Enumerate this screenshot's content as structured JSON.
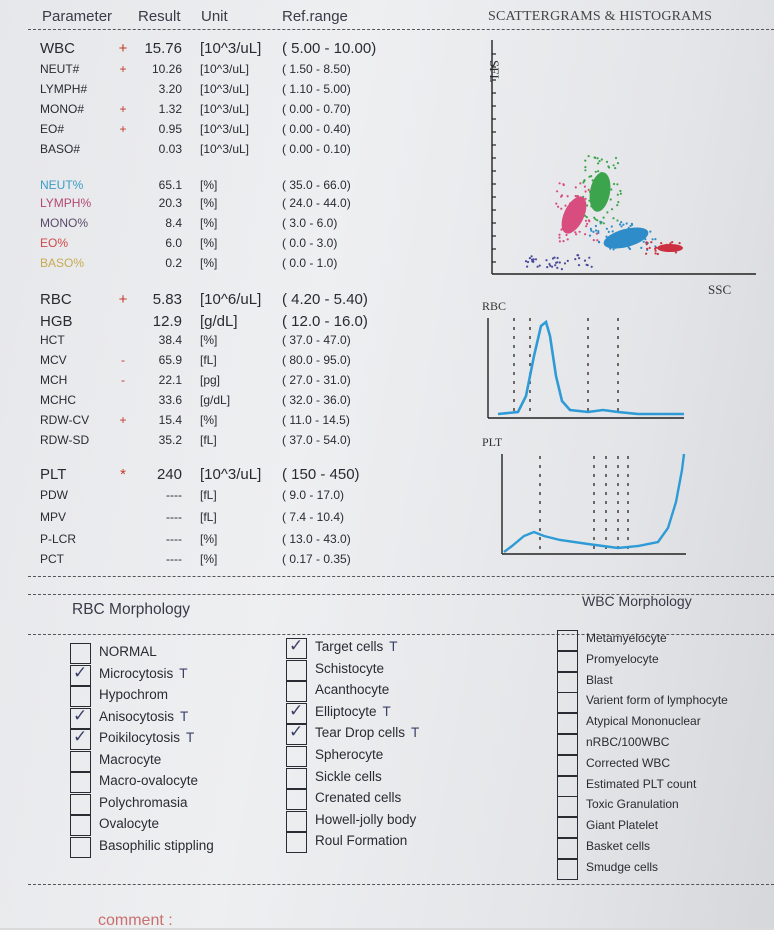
{
  "header": {
    "parameter": "Parameter",
    "result": "Result",
    "unit": "Unit",
    "ref": "Ref.range",
    "scatter_title": "SCATTERGRAMS & HISTOGRAMS"
  },
  "rows": [
    {
      "name": "WBC",
      "flag": "+",
      "result": "15.76",
      "unit": "[10^3/uL]",
      "ref": "( 5.00 - 10.00)",
      "size": "big"
    },
    {
      "name": "NEUT#",
      "flag": "+",
      "result": "10.26",
      "unit": "[10^3/uL]",
      "ref": "( 1.50 - 8.50)",
      "size": "sm"
    },
    {
      "name": "LYMPH#",
      "flag": "",
      "result": "3.20",
      "unit": "[10^3/uL]",
      "ref": "( 1.10 - 5.00)",
      "size": "sm"
    },
    {
      "name": "MONO#",
      "flag": "+",
      "result": "1.32",
      "unit": "[10^3/uL]",
      "ref": "( 0.00 - 0.70)",
      "size": "sm"
    },
    {
      "name": "EO#",
      "flag": "+",
      "result": "0.95",
      "unit": "[10^3/uL]",
      "ref": "( 0.00 - 0.40)",
      "size": "sm"
    },
    {
      "name": "BASO#",
      "flag": "",
      "result": "0.03",
      "unit": "[10^3/uL]",
      "ref": "( 0.00 - 0.10)",
      "size": "sm"
    },
    {
      "name": "NEUT%",
      "flag": "",
      "result": "65.1",
      "unit": "[%]",
      "ref": "( 35.0 - 66.0)",
      "size": "sm",
      "color": "#3c9cc4"
    },
    {
      "name": "LYMPH%",
      "flag": "",
      "result": "20.3",
      "unit": "[%]",
      "ref": "( 24.0 - 44.0)",
      "size": "sm",
      "color": "#b2486e"
    },
    {
      "name": "MONO%",
      "flag": "",
      "result": "8.4",
      "unit": "[%]",
      "ref": "( 3.0 - 6.0)",
      "size": "sm",
      "color": "#5a4a6a"
    },
    {
      "name": "EO%",
      "flag": "",
      "result": "6.0",
      "unit": "[%]",
      "ref": "( 0.0 - 3.0)",
      "size": "sm",
      "color": "#d04848"
    },
    {
      "name": "BASO%",
      "flag": "",
      "result": "0.2",
      "unit": "[%]",
      "ref": "( 0.0 - 1.0)",
      "size": "sm",
      "color": "#c8aa50"
    },
    {
      "name": "RBC",
      "flag": "+",
      "result": "5.83",
      "unit": "[10^6/uL]",
      "ref": "( 4.20 - 5.40)",
      "size": "big"
    },
    {
      "name": "HGB",
      "flag": "",
      "result": "12.9",
      "unit": "[g/dL]",
      "ref": "( 12.0 - 16.0)",
      "size": "big"
    },
    {
      "name": "HCT",
      "flag": "",
      "result": "38.4",
      "unit": "[%]",
      "ref": "( 37.0 - 47.0)",
      "size": "sm"
    },
    {
      "name": "MCV",
      "flag": "-",
      "result": "65.9",
      "unit": "[fL]",
      "ref": "( 80.0 - 95.0)",
      "size": "sm"
    },
    {
      "name": "MCH",
      "flag": "-",
      "result": "22.1",
      "unit": "[pg]",
      "ref": "( 27.0 - 31.0)",
      "size": "sm"
    },
    {
      "name": "MCHC",
      "flag": "",
      "result": "33.6",
      "unit": "[g/dL]",
      "ref": "( 32.0 - 36.0)",
      "size": "sm"
    },
    {
      "name": "RDW-CV",
      "flag": "+",
      "result": "15.4",
      "unit": "[%]",
      "ref": "( 11.0 - 14.5)",
      "size": "sm"
    },
    {
      "name": "RDW-SD",
      "flag": "",
      "result": "35.2",
      "unit": "[fL]",
      "ref": "( 37.0 - 54.0)",
      "size": "sm"
    },
    {
      "name": "PLT",
      "flag": "*",
      "result": "240",
      "unit": "[10^3/uL]",
      "ref": "( 150 - 450)",
      "size": "big"
    },
    {
      "name": "PDW",
      "flag": "",
      "result": "----",
      "unit": "[fL]",
      "ref": "( 9.0 - 17.0)",
      "size": "sm"
    },
    {
      "name": "MPV",
      "flag": "",
      "result": "----",
      "unit": "[fL]",
      "ref": "( 7.4 - 10.4)",
      "size": "sm"
    },
    {
      "name": "P-LCR",
      "flag": "",
      "result": "----",
      "unit": "[%]",
      "ref": "( 13.0 - 43.0)",
      "size": "sm"
    },
    {
      "name": "PCT",
      "flag": "",
      "result": "----",
      "unit": "[%]",
      "ref": "( 0.17 - 0.35)",
      "size": "sm"
    }
  ],
  "scatter": {
    "y_label": "SFL",
    "x_label": "SSC"
  },
  "histograms": {
    "rbc_label": "RBC",
    "plt_label": "PLT"
  },
  "rbc_morph_title": "RBC Morphology",
  "wbc_morph_title": "WBC Morphology",
  "rbc_col1": [
    {
      "label": "NORMAL",
      "checked": false,
      "mark": ""
    },
    {
      "label": "Microcytosis",
      "checked": true,
      "mark": "T"
    },
    {
      "label": "Hypochrom",
      "checked": false,
      "mark": ""
    },
    {
      "label": "Anisocytosis",
      "checked": true,
      "mark": "T"
    },
    {
      "label": "Poikilocytosis",
      "checked": true,
      "mark": "T"
    },
    {
      "label": "Macrocyte",
      "checked": false,
      "mark": ""
    },
    {
      "label": "Macro-ovalocyte",
      "checked": false,
      "mark": ""
    },
    {
      "label": "Polychromasia",
      "checked": false,
      "mark": ""
    },
    {
      "label": "Ovalocyte",
      "checked": false,
      "mark": ""
    },
    {
      "label": "Basophilic stippling",
      "checked": false,
      "mark": ""
    }
  ],
  "rbc_col2": [
    {
      "label": "Target cells",
      "checked": true,
      "mark": "T"
    },
    {
      "label": "Schistocyte",
      "checked": false,
      "mark": ""
    },
    {
      "label": "Acanthocyte",
      "checked": false,
      "mark": ""
    },
    {
      "label": "Elliptocyte",
      "checked": true,
      "mark": "T"
    },
    {
      "label": "Tear Drop cells",
      "checked": true,
      "mark": "T"
    },
    {
      "label": "Spherocyte",
      "checked": false,
      "mark": ""
    },
    {
      "label": "Sickle cells",
      "checked": false,
      "mark": ""
    },
    {
      "label": "Crenated cells",
      "checked": false,
      "mark": ""
    },
    {
      "label": "Howell-jolly body",
      "checked": false,
      "mark": ""
    },
    {
      "label": "Roul Formation",
      "checked": false,
      "mark": ""
    }
  ],
  "wbc_col": [
    {
      "label": "Metamyelocyte",
      "checked": false
    },
    {
      "label": "Promyelocyte",
      "checked": false
    },
    {
      "label": "Blast",
      "checked": false
    },
    {
      "label": "Varient form of lymphocyte",
      "checked": false
    },
    {
      "label": "Atypical Mononuclear",
      "checked": false
    },
    {
      "label": "nRBC/100WBC",
      "checked": false
    },
    {
      "label": "Corrected WBC",
      "checked": false
    },
    {
      "label": "Estimated PLT count",
      "checked": false
    },
    {
      "label": "Toxic Granulation",
      "checked": false
    },
    {
      "label": "Giant Platelet",
      "checked": false
    },
    {
      "label": "Basket cells",
      "checked": false
    },
    {
      "label": "Smudge cells",
      "checked": false
    }
  ],
  "comment": "comment :"
}
